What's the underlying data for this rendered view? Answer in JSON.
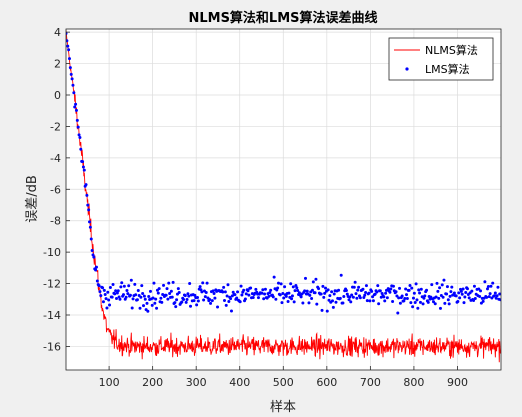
{
  "figure": {
    "background": "#f0f0f0"
  },
  "chart_data": {
    "type": "line",
    "title": "NLMS算法和LMS算法误差曲线",
    "xlabel": "样本",
    "ylabel": "误差/dB",
    "xlim": [
      1,
      1000
    ],
    "ylim": [
      -17.5,
      4.2
    ],
    "xticks": [
      100,
      200,
      300,
      400,
      500,
      600,
      700,
      800,
      900
    ],
    "yticks": [
      4,
      2,
      0,
      -2,
      -4,
      -6,
      -8,
      -10,
      -12,
      -14,
      -16
    ],
    "grid": true,
    "legend_position": "top-right",
    "series": [
      {
        "name": "NLMS算法",
        "style": "line",
        "color": "#ff0000",
        "x": [
          1,
          10,
          20,
          30,
          40,
          50,
          60,
          70,
          80,
          90,
          100,
          120,
          150,
          200,
          300,
          400,
          500,
          600,
          700,
          800,
          900,
          1000
        ],
        "values": [
          4.0,
          2.0,
          0.0,
          -2.2,
          -4.5,
          -6.8,
          -9.0,
          -11.0,
          -12.8,
          -14.3,
          -15.3,
          -15.8,
          -16.0,
          -16.0,
          -16.0,
          -16.0,
          -16.0,
          -16.0,
          -16.0,
          -16.0,
          -16.0,
          -16.0
        ],
        "noise_std": 0.45
      },
      {
        "name": "LMS算法",
        "style": "markers",
        "color": "#0000ff",
        "x": [
          1,
          10,
          20,
          30,
          40,
          50,
          60,
          70,
          80,
          90,
          100,
          150,
          200,
          300,
          400,
          500,
          600,
          700,
          800,
          900,
          1000
        ],
        "values": [
          4.0,
          2.0,
          0.0,
          -2.0,
          -4.5,
          -7.0,
          -9.5,
          -11.5,
          -12.4,
          -12.6,
          -12.7,
          -12.7,
          -12.7,
          -12.7,
          -12.7,
          -12.7,
          -12.7,
          -12.7,
          -12.7,
          -12.7,
          -12.7
        ],
        "noise_std": 0.55
      }
    ]
  }
}
